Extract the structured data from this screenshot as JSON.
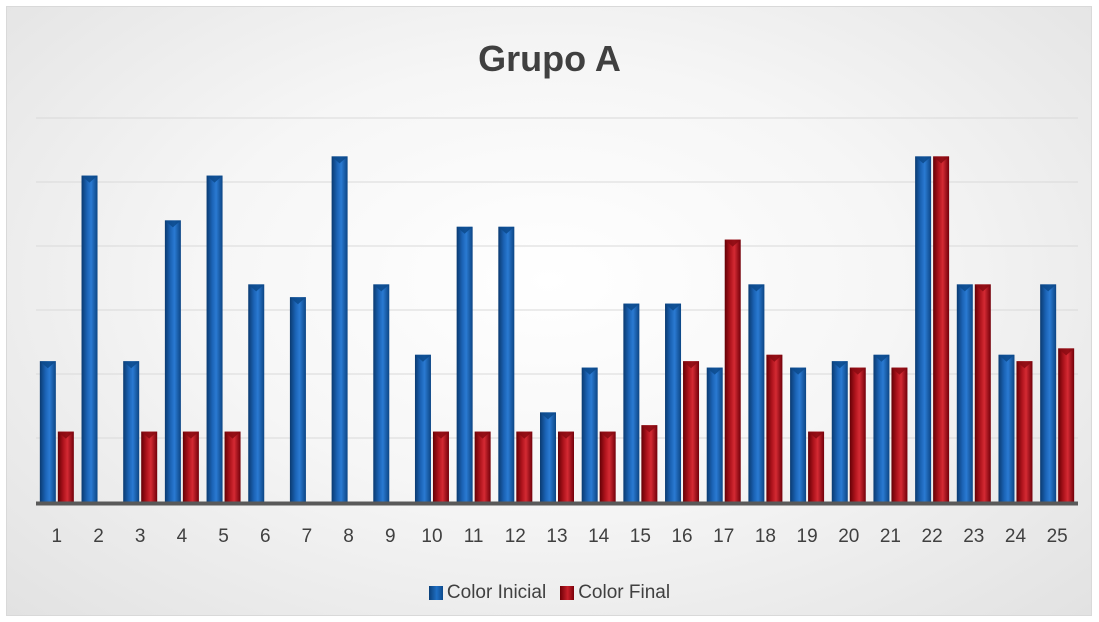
{
  "colors": {
    "initial": "#1a5fae",
    "final": "#b5121b",
    "axis": "#595959",
    "grid": "#d9d9d9",
    "text": "#404040"
  },
  "chart_data": {
    "type": "bar",
    "title": "Grupo A",
    "xlabel": "",
    "ylabel": "",
    "categories": [
      "1",
      "2",
      "3",
      "4",
      "5",
      "6",
      "7",
      "8",
      "9",
      "10",
      "11",
      "12",
      "13",
      "14",
      "15",
      "16",
      "17",
      "18",
      "19",
      "20",
      "21",
      "22",
      "23",
      "24",
      "25"
    ],
    "series": [
      {
        "name": "Color Inicial",
        "values": [
          2.2,
          5.1,
          2.2,
          4.4,
          5.1,
          3.4,
          3.2,
          5.4,
          3.4,
          2.3,
          4.3,
          4.3,
          1.4,
          2.1,
          3.1,
          3.1,
          2.1,
          3.4,
          2.1,
          2.2,
          2.3,
          5.4,
          3.4,
          2.3,
          3.4
        ]
      },
      {
        "name": "Color Final",
        "values": [
          1.1,
          0,
          1.1,
          1.1,
          1.1,
          0,
          0,
          0,
          0,
          1.1,
          1.1,
          1.1,
          1.1,
          1.1,
          1.2,
          2.2,
          4.1,
          2.3,
          1.1,
          2.1,
          2.1,
          5.4,
          3.4,
          2.2,
          2.4
        ]
      }
    ],
    "ylim": [
      0,
      6
    ],
    "y_tick_labels_shown": false,
    "grid": true,
    "legend": "bottom"
  }
}
